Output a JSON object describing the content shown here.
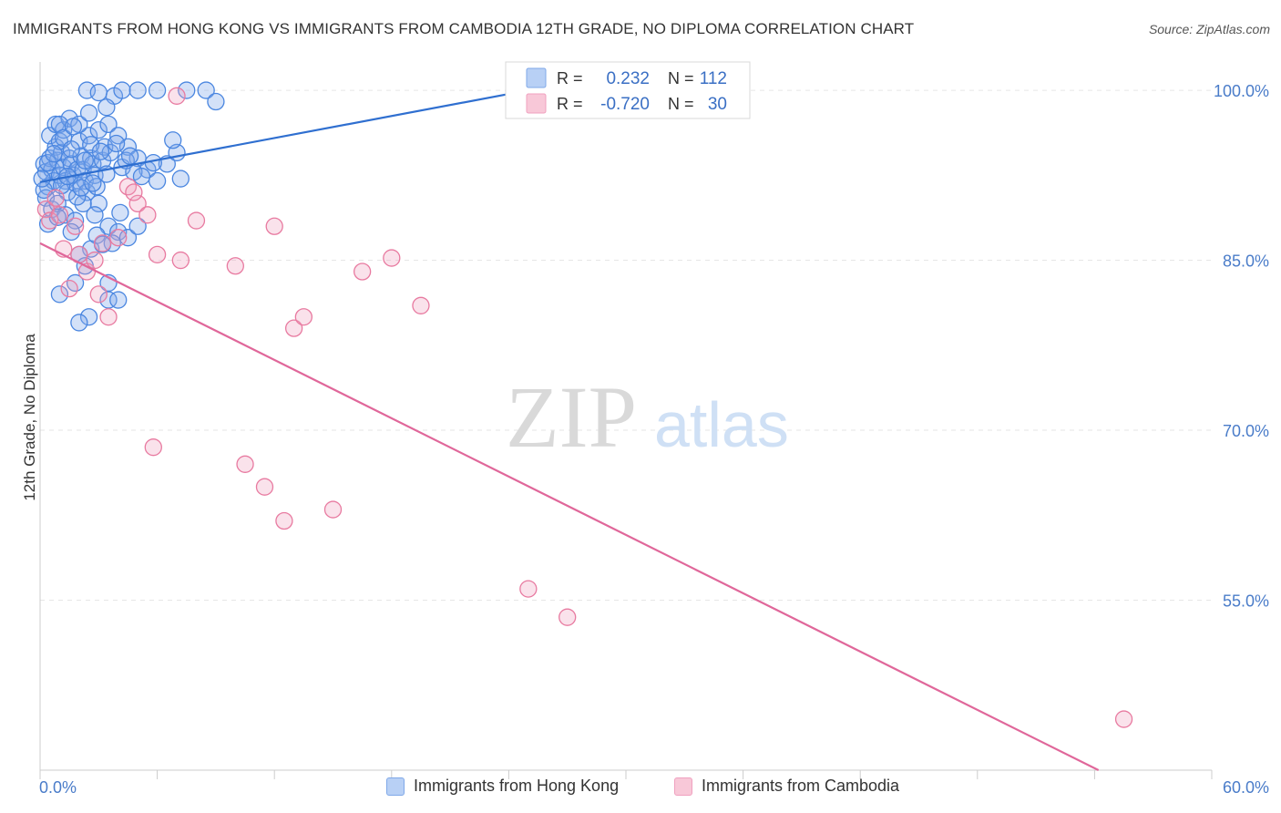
{
  "title": "IMMIGRANTS FROM HONG KONG VS IMMIGRANTS FROM CAMBODIA 12TH GRADE, NO DIPLOMA CORRELATION CHART",
  "source": "Source: ZipAtlas.com",
  "watermark": {
    "zip": "ZIP",
    "atlas": "atlas"
  },
  "stats_legend": [
    {
      "r_label": "R =",
      "r_value": "0.232",
      "n_label": "N =",
      "n_value": "112",
      "color": "#7fa8e8"
    },
    {
      "r_label": "R =",
      "r_value": "-0.720",
      "n_label": "N =",
      "n_value": "30",
      "color": "#f0a0bf"
    }
  ],
  "bottom_legend": [
    {
      "label": "Immigrants from Hong Kong",
      "fill": "#b8d0f5",
      "stroke": "#7fa8e8"
    },
    {
      "label": "Immigrants from Cambodia",
      "fill": "#f8c8d8",
      "stroke": "#f0a0bf"
    }
  ],
  "chart_data": {
    "type": "scatter",
    "title": "IMMIGRANTS FROM HONG KONG VS IMMIGRANTS FROM CAMBODIA 12TH GRADE, NO DIPLOMA CORRELATION CHART",
    "xlabel": "",
    "ylabel": "12th Grade, No Diploma",
    "xlim": [
      0,
      60
    ],
    "ylim": [
      40,
      102.5
    ],
    "x_tick_labels": [
      "0.0%",
      "60.0%"
    ],
    "y_ticks": [
      100,
      85,
      70,
      55
    ],
    "y_tick_labels": [
      "100.0%",
      "85.0%",
      "70.0%",
      "55.0%"
    ],
    "grid": true,
    "series": [
      {
        "name": "Immigrants from Hong Kong",
        "color": "#4a86e0",
        "fill": "rgba(130,170,235,0.35)",
        "trend": {
          "x": [
            0,
            25
          ],
          "y": [
            91.9,
            100.0
          ],
          "color": "#2f6fd0"
        },
        "points": [
          [
            0.2,
            93.5
          ],
          [
            0.3,
            92.8
          ],
          [
            0.4,
            91.5
          ],
          [
            0.5,
            94.0
          ],
          [
            0.6,
            93.0
          ],
          [
            0.7,
            92.0
          ],
          [
            0.8,
            95.0
          ],
          [
            0.9,
            93.8
          ],
          [
            1.0,
            92.5
          ],
          [
            1.1,
            94.5
          ],
          [
            1.2,
            93.2
          ],
          [
            1.3,
            92.0
          ],
          [
            1.4,
            91.0
          ],
          [
            1.5,
            94.0
          ],
          [
            1.6,
            93.5
          ],
          [
            1.7,
            92.5
          ],
          [
            1.8,
            91.8
          ],
          [
            1.9,
            93.0
          ],
          [
            2.0,
            95.5
          ],
          [
            2.1,
            94.2
          ],
          [
            2.2,
            93.0
          ],
          [
            2.3,
            92.0
          ],
          [
            2.4,
            91.0
          ],
          [
            2.5,
            96.0
          ],
          [
            2.6,
            94.0
          ],
          [
            2.7,
            93.5
          ],
          [
            2.8,
            92.5
          ],
          [
            2.9,
            91.5
          ],
          [
            3.0,
            90.0
          ],
          [
            3.2,
            93.8
          ],
          [
            0.5,
            96.0
          ],
          [
            0.8,
            97.0
          ],
          [
            1.0,
            95.5
          ],
          [
            1.2,
            96.5
          ],
          [
            1.5,
            97.5
          ],
          [
            2.0,
            97.0
          ],
          [
            2.5,
            98.0
          ],
          [
            3.0,
            96.5
          ],
          [
            3.5,
            97.0
          ],
          [
            4.0,
            96.0
          ],
          [
            4.5,
            95.0
          ],
          [
            5.0,
            94.0
          ],
          [
            5.5,
            93.0
          ],
          [
            6.0,
            92.0
          ],
          [
            6.5,
            93.5
          ],
          [
            7.0,
            94.5
          ],
          [
            3.3,
            95.0
          ],
          [
            3.6,
            94.5
          ],
          [
            4.2,
            93.2
          ],
          [
            4.8,
            92.8
          ],
          [
            2.4,
            100.0
          ],
          [
            3.0,
            99.8
          ],
          [
            3.8,
            99.5
          ],
          [
            4.2,
            100.0
          ],
          [
            5.0,
            100.0
          ],
          [
            6.0,
            100.0
          ],
          [
            7.5,
            100.0
          ],
          [
            8.5,
            100.0
          ],
          [
            9.0,
            99.0
          ],
          [
            3.4,
            98.5
          ],
          [
            0.3,
            90.5
          ],
          [
            0.6,
            89.5
          ],
          [
            0.9,
            90.0
          ],
          [
            1.3,
            89.0
          ],
          [
            1.8,
            88.5
          ],
          [
            2.2,
            90.0
          ],
          [
            2.8,
            89.0
          ],
          [
            3.5,
            88.0
          ],
          [
            4.0,
            87.5
          ],
          [
            4.5,
            87.0
          ],
          [
            5.0,
            88.0
          ],
          [
            3.7,
            86.5
          ],
          [
            2.6,
            86.0
          ],
          [
            1.6,
            87.5
          ],
          [
            2.0,
            85.5
          ],
          [
            2.3,
            84.5
          ],
          [
            1.8,
            83.0
          ],
          [
            1.0,
            82.0
          ],
          [
            2.5,
            80.0
          ],
          [
            2.0,
            79.5
          ],
          [
            3.5,
            81.5
          ],
          [
            3.5,
            83.0
          ],
          [
            4.0,
            81.5
          ],
          [
            1.0,
            97.0
          ],
          [
            1.2,
            95.8
          ],
          [
            1.6,
            94.8
          ],
          [
            2.6,
            95.2
          ],
          [
            3.1,
            94.6
          ],
          [
            3.9,
            95.3
          ],
          [
            4.4,
            93.8
          ],
          [
            0.2,
            91.2
          ],
          [
            0.4,
            93.6
          ],
          [
            0.7,
            94.4
          ],
          [
            1.1,
            91.6
          ],
          [
            1.4,
            92.4
          ],
          [
            1.9,
            90.6
          ],
          [
            2.1,
            91.4
          ],
          [
            2.7,
            91.8
          ],
          [
            3.4,
            92.6
          ],
          [
            4.6,
            94.2
          ],
          [
            5.2,
            92.4
          ],
          [
            5.8,
            93.6
          ],
          [
            0.4,
            88.2
          ],
          [
            0.9,
            88.8
          ],
          [
            2.9,
            87.2
          ],
          [
            3.2,
            86.4
          ],
          [
            4.1,
            89.2
          ],
          [
            0.1,
            92.2
          ],
          [
            1.7,
            96.8
          ],
          [
            2.3,
            93.8
          ],
          [
            6.8,
            95.6
          ],
          [
            7.2,
            92.2
          ]
        ]
      },
      {
        "name": "Immigrants from Cambodia",
        "color": "#e87aa0",
        "fill": "rgba(240,160,190,0.3)",
        "trend": {
          "x": [
            0,
            54.2
          ],
          "y": [
            86.5,
            40.0
          ],
          "color": "#e0679a"
        },
        "points": [
          [
            0.3,
            89.5
          ],
          [
            0.5,
            88.5
          ],
          [
            0.8,
            90.5
          ],
          [
            1.0,
            89.0
          ],
          [
            1.2,
            86.0
          ],
          [
            1.5,
            82.5
          ],
          [
            1.8,
            88.0
          ],
          [
            2.0,
            85.5
          ],
          [
            2.4,
            84.0
          ],
          [
            2.8,
            85.0
          ],
          [
            3.0,
            82.0
          ],
          [
            3.2,
            86.5
          ],
          [
            3.5,
            80.0
          ],
          [
            4.0,
            87.0
          ],
          [
            4.5,
            91.5
          ],
          [
            5.0,
            90.0
          ],
          [
            4.8,
            91.0
          ],
          [
            5.5,
            89.0
          ],
          [
            6.0,
            85.5
          ],
          [
            7.0,
            99.5
          ],
          [
            7.2,
            85.0
          ],
          [
            8.0,
            88.5
          ],
          [
            10.0,
            84.5
          ],
          [
            12.0,
            88.0
          ],
          [
            13.0,
            79.0
          ],
          [
            13.5,
            80.0
          ],
          [
            10.5,
            67.0
          ],
          [
            11.5,
            65.0
          ],
          [
            12.5,
            62.0
          ],
          [
            15.0,
            63.0
          ]
        ],
        "points_extra": [
          [
            16.5,
            84.0
          ],
          [
            18.0,
            85.2
          ],
          [
            19.5,
            81.0
          ],
          [
            25.0,
            56.0
          ],
          [
            27.0,
            53.5
          ],
          [
            55.5,
            44.5
          ],
          [
            5.8,
            68.5
          ]
        ]
      }
    ]
  }
}
